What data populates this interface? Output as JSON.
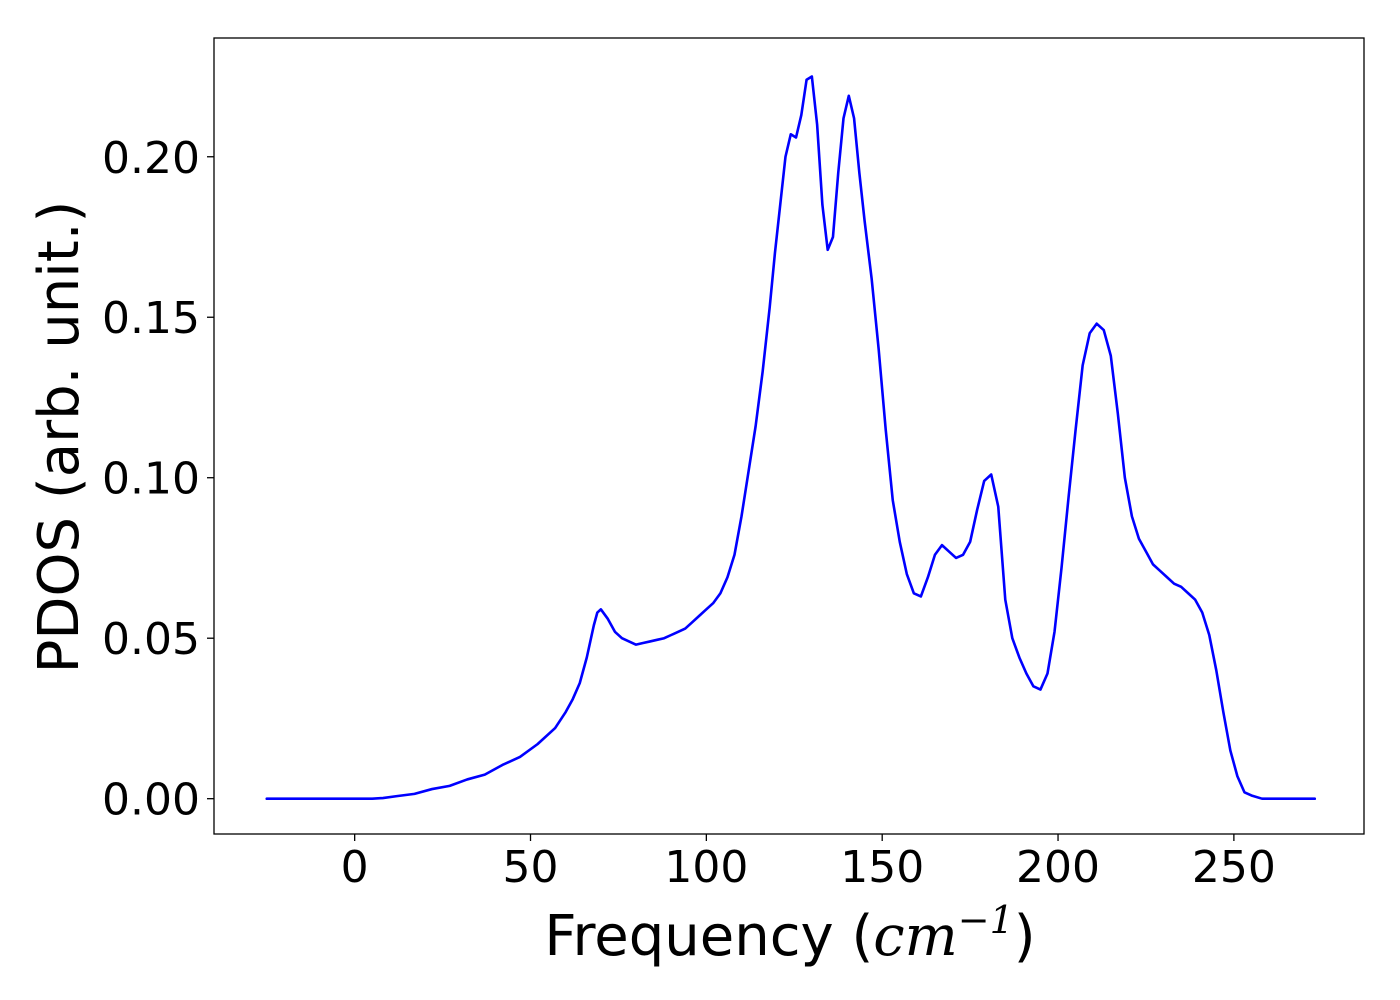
{
  "chart_data": {
    "type": "line",
    "title": "",
    "xlabel": "Frequency",
    "xlabel_unit_open": "(",
    "xlabel_unit_base": "cm",
    "xlabel_unit_exp": "−1",
    "xlabel_unit_close": ")",
    "ylabel": "PDOS (arb. unit.)",
    "xlim": [
      -40,
      287
    ],
    "ylim": [
      -0.011,
      0.237
    ],
    "grid": false,
    "legend": "none",
    "x_ticks": [
      0,
      50,
      100,
      150,
      200,
      250
    ],
    "x_tick_labels": [
      "0",
      "50",
      "100",
      "150",
      "200",
      "250"
    ],
    "y_ticks": [
      0.0,
      0.05,
      0.1,
      0.15,
      0.2
    ],
    "y_tick_labels": [
      "0.00",
      "0.05",
      "0.10",
      "0.15",
      "0.20"
    ],
    "series": [
      {
        "color": "#0000ff",
        "x": [
          -25,
          -15,
          -5,
          0,
          5,
          8,
          12,
          17,
          22,
          27,
          32,
          37,
          42,
          47,
          52,
          57,
          60,
          62,
          64,
          66,
          68,
          69,
          70,
          72,
          74,
          76,
          78,
          80,
          82,
          84,
          86,
          88,
          90,
          92,
          94,
          96,
          98,
          100,
          102,
          104,
          106,
          108,
          110,
          112,
          114,
          116,
          118,
          119.5,
          121,
          122.5,
          124,
          125.5,
          127,
          128.5,
          130,
          131.5,
          133,
          134.5,
          136,
          137.5,
          139,
          140.5,
          142,
          143.5,
          145,
          147,
          149,
          151,
          153,
          155,
          157,
          159,
          161,
          163,
          165,
          167,
          169,
          171,
          173,
          175,
          177,
          179,
          181,
          183,
          185,
          187,
          189,
          191,
          193,
          195,
          197,
          199,
          201,
          203,
          205,
          207,
          209,
          211,
          213,
          215,
          217,
          219,
          221,
          223,
          225,
          227,
          229,
          231,
          233,
          235,
          237,
          239,
          241,
          243,
          245,
          247,
          249,
          251,
          253,
          255,
          258,
          263,
          270,
          273
        ],
        "y": [
          0.0,
          0.0,
          0.0,
          0.0,
          0.0,
          0.0002,
          0.0008,
          0.0015,
          0.003,
          0.004,
          0.006,
          0.0075,
          0.0105,
          0.013,
          0.017,
          0.022,
          0.027,
          0.031,
          0.036,
          0.044,
          0.054,
          0.058,
          0.059,
          0.056,
          0.052,
          0.05,
          0.049,
          0.048,
          0.0485,
          0.049,
          0.0495,
          0.05,
          0.051,
          0.052,
          0.053,
          0.055,
          0.057,
          0.059,
          0.061,
          0.064,
          0.069,
          0.076,
          0.088,
          0.102,
          0.116,
          0.133,
          0.153,
          0.17,
          0.185,
          0.2,
          0.207,
          0.206,
          0.213,
          0.224,
          0.225,
          0.21,
          0.185,
          0.171,
          0.175,
          0.195,
          0.212,
          0.219,
          0.212,
          0.195,
          0.18,
          0.162,
          0.14,
          0.115,
          0.093,
          0.08,
          0.07,
          0.064,
          0.063,
          0.069,
          0.076,
          0.079,
          0.077,
          0.075,
          0.076,
          0.08,
          0.09,
          0.099,
          0.101,
          0.091,
          0.062,
          0.05,
          0.044,
          0.039,
          0.035,
          0.034,
          0.039,
          0.052,
          0.072,
          0.094,
          0.115,
          0.135,
          0.145,
          0.148,
          0.146,
          0.138,
          0.12,
          0.1,
          0.088,
          0.081,
          0.077,
          0.073,
          0.071,
          0.069,
          0.067,
          0.066,
          0.064,
          0.062,
          0.058,
          0.051,
          0.04,
          0.027,
          0.015,
          0.007,
          0.002,
          0.001,
          0.0,
          0.0,
          0.0,
          0.0
        ]
      }
    ]
  }
}
